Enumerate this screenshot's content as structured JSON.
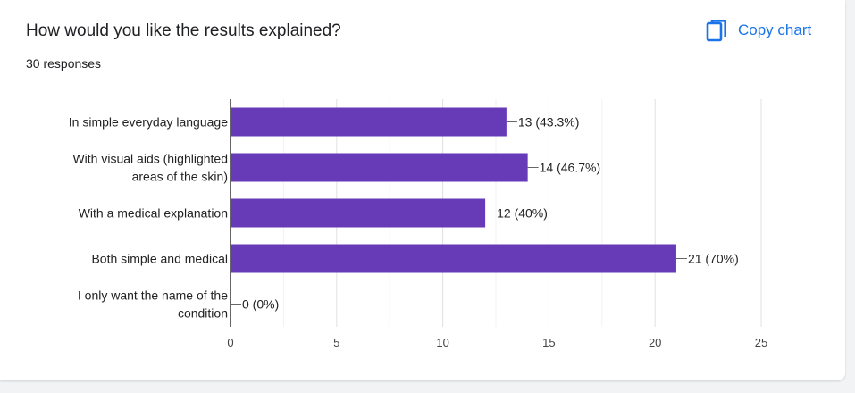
{
  "card": {
    "title": "How would you like the results explained?",
    "subtitle": "30 responses",
    "copy_label": "Copy chart",
    "copy_icon": "copy-icon"
  },
  "colors": {
    "bar": "#673ab7",
    "accent": "#1a73e8",
    "grid": "#ebebeb",
    "axis": "#333333"
  },
  "chart_data": {
    "type": "bar",
    "orientation": "horizontal",
    "categories": [
      [
        "In simple everyday language"
      ],
      [
        "With visual aids (highlighted",
        "areas of the skin)"
      ],
      [
        "With a medical explanation"
      ],
      [
        "Both simple and medical"
      ],
      [
        "I only want the name of the",
        "condition"
      ]
    ],
    "values": [
      13,
      14,
      12,
      21,
      0
    ],
    "data_labels": [
      "13 (43.3%)",
      "14 (46.7%)",
      "12 (40%)",
      "21 (70%)",
      "0 (0%)"
    ],
    "xlim": [
      0,
      25
    ],
    "xticks": [
      0,
      5,
      10,
      15,
      20,
      25
    ],
    "grid": true,
    "legend": "none"
  }
}
